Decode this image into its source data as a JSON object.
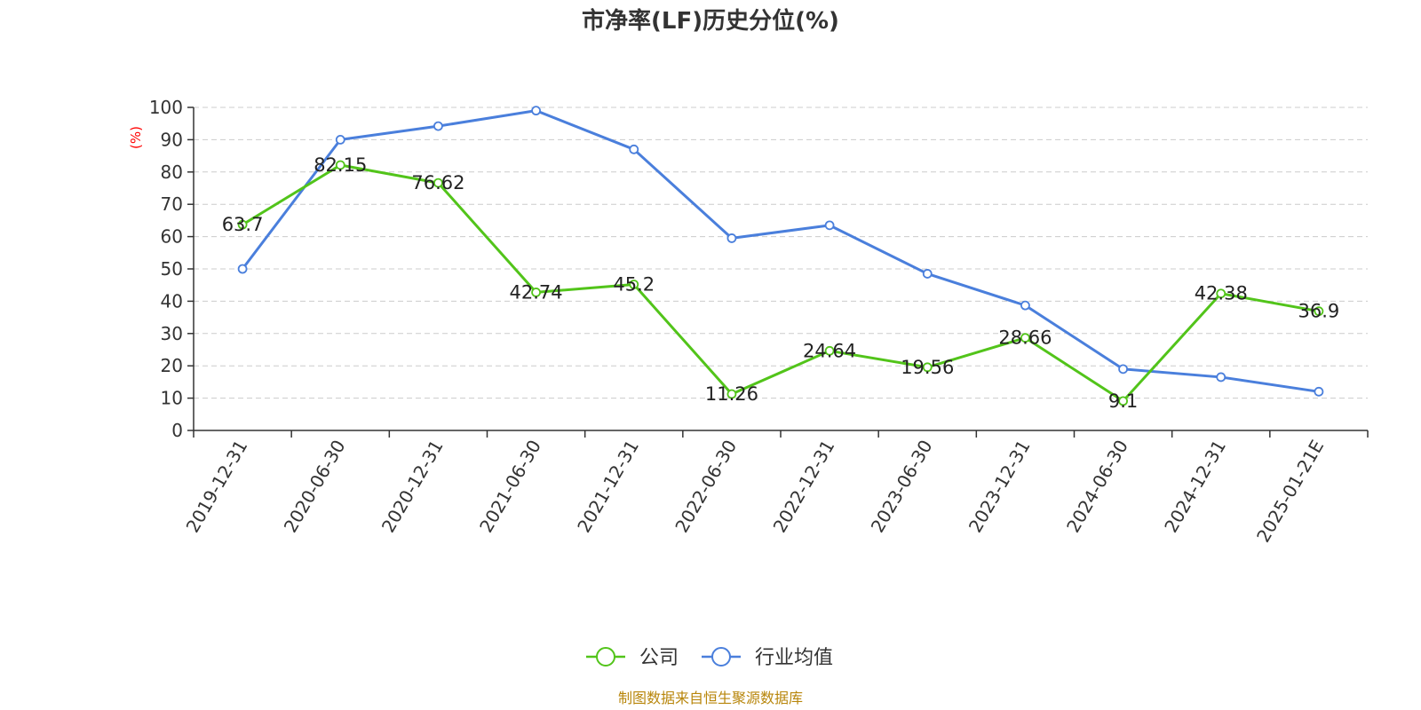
{
  "chart_data": {
    "type": "line",
    "title": "市净率(LF)历史分位(%)",
    "ylabel": "(%)",
    "xlabel": "",
    "ylim": [
      0,
      100
    ],
    "yticks": [
      0,
      10,
      20,
      30,
      40,
      50,
      60,
      70,
      80,
      90,
      100
    ],
    "grid": true,
    "legend_position": "bottom-center",
    "categories": [
      "2019-12-31",
      "2020-06-30",
      "2020-12-31",
      "2021-06-30",
      "2021-12-31",
      "2022-06-30",
      "2022-12-31",
      "2023-06-30",
      "2023-12-31",
      "2024-06-30",
      "2024-12-31",
      "2025-01-21E"
    ],
    "series": [
      {
        "name": "公司",
        "color": "#52c41a",
        "show_labels": true,
        "labels": [
          "63.7",
          "82.15",
          "76.62",
          "42.74",
          "45.2",
          "11.26",
          "24.64",
          "19.56",
          "28.66",
          "9.1",
          "42.38",
          "36.9"
        ],
        "values": [
          63.7,
          82.15,
          76.62,
          42.74,
          45.2,
          11.26,
          24.64,
          19.56,
          28.66,
          9.1,
          42.38,
          36.9
        ]
      },
      {
        "name": "行业均值",
        "color": "#4a7fdc",
        "show_labels": false,
        "values": [
          50.0,
          90.0,
          94.2,
          99.0,
          87.0,
          59.5,
          63.5,
          48.5,
          38.7,
          19.0,
          16.5,
          12.0
        ]
      }
    ],
    "source": "制图数据来自恒生聚源数据库"
  }
}
